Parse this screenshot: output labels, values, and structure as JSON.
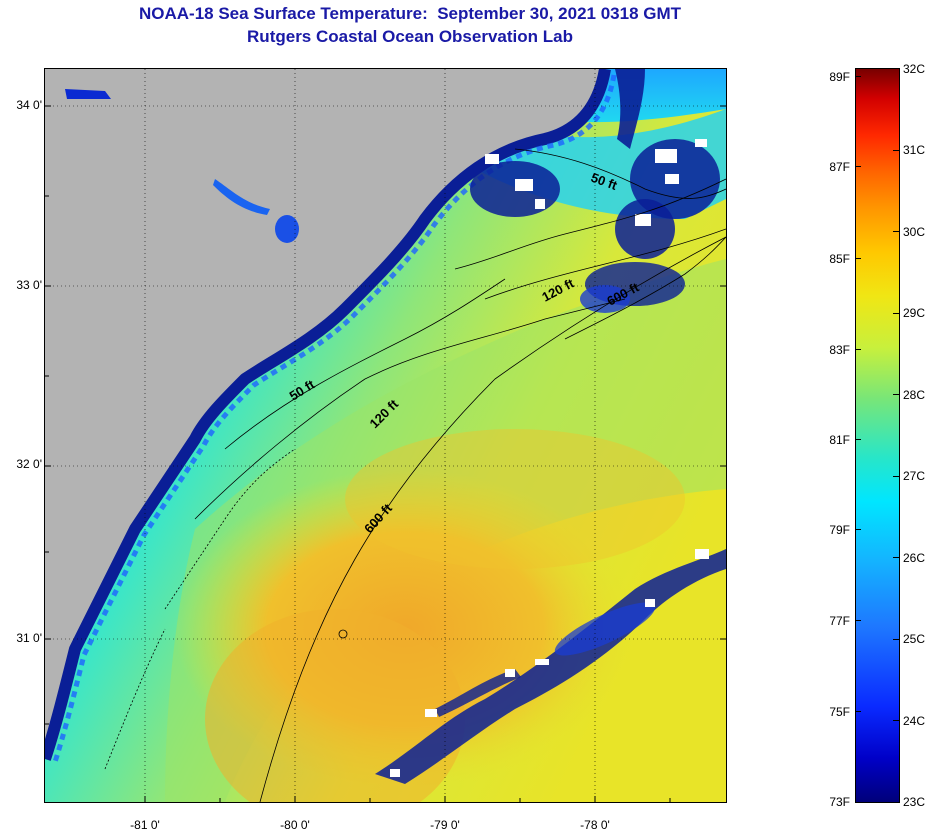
{
  "title": {
    "line1": "NOAA-18 Sea Surface Temperature:  September 30, 2021 0318 GMT",
    "line2": "Rutgers Coastal Ocean Observation Lab"
  },
  "map": {
    "latitude_labels": [
      "34 0'",
      "33 0'",
      "32 0'",
      "31 0'"
    ],
    "longitude_labels": [
      "-81 0'",
      "-80 0'",
      "-79 0'",
      "-78 0'"
    ],
    "contour_labels": {
      "near_50": "50 ft",
      "near_120": "120 ft",
      "near_600": "600 ft",
      "south_50": "50 ft",
      "south_120": "120 ft",
      "south_600": "600 ft"
    },
    "colors": {
      "land": "#b3b3b3",
      "coastal_cold": "#0a1e96",
      "shelf_cyan": "#1ee6f0",
      "mid_green": "#6ee68c",
      "warm_yellow": "#e6e628",
      "gulfstream_orange": "#f0b428",
      "cloud": "#ffffff"
    }
  },
  "colorbar": {
    "fahrenheit_labels": [
      "89F",
      "87F",
      "85F",
      "83F",
      "81F",
      "79F",
      "77F",
      "75F",
      "73F"
    ],
    "celsius_labels": [
      "32C",
      "31C",
      "30C",
      "29C",
      "28C",
      "27C",
      "26C",
      "25C",
      "24C",
      "23C"
    ],
    "range_c": [
      23,
      32
    ],
    "range_f": [
      73,
      89
    ]
  }
}
